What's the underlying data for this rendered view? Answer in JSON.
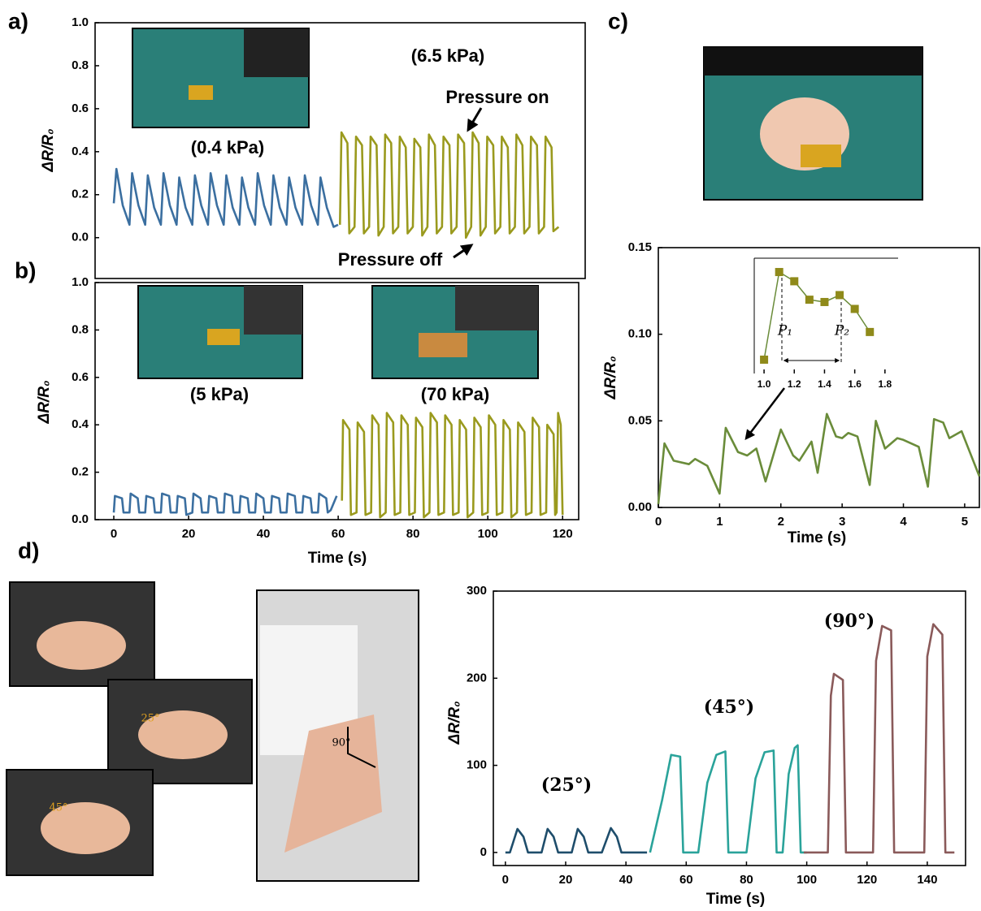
{
  "chart_data": [
    {
      "type": "line",
      "panel_label": "a)",
      "ylabel": "ΔR/R₀",
      "xlim": [
        -5,
        126.1
      ],
      "ylim": [
        -0.19,
        1.0
      ],
      "yticks": [
        {
          "value": 0,
          "label": "0.0"
        },
        0.2,
        0.4,
        0.6,
        0.8,
        {
          "value": 1,
          "label": "1.0"
        }
      ],
      "annotations": [
        "(0.4 kPa)",
        "(6.5 kPa)",
        "Pressure on",
        "Pressure off"
      ],
      "series": [
        {
          "color": "#3b6fa0",
          "x": [
            0,
            0.7,
            2.4,
            4.2,
            4.9,
            6.6,
            8.4,
            9.1,
            10.8,
            12.6,
            13.3,
            15,
            16.8,
            17.5,
            19.2,
            21,
            21.7,
            23.4,
            25.2,
            25.9,
            27.6,
            29.4,
            30.1,
            31.8,
            33.6,
            34.3,
            36,
            37.8,
            38.5,
            40.2,
            42,
            42.7,
            44.4,
            46.2,
            46.9,
            48.6,
            50.4,
            51.1,
            52.8,
            54.6,
            55.3,
            57,
            58.8,
            60
          ],
          "values": [
            0.16,
            0.32,
            0.15,
            0.06,
            0.3,
            0.15,
            0.06,
            0.29,
            0.14,
            0.06,
            0.3,
            0.15,
            0.06,
            0.28,
            0.14,
            0.06,
            0.29,
            0.15,
            0.06,
            0.3,
            0.15,
            0.06,
            0.29,
            0.14,
            0.06,
            0.28,
            0.14,
            0.06,
            0.3,
            0.15,
            0.06,
            0.29,
            0.14,
            0.06,
            0.28,
            0.14,
            0.06,
            0.29,
            0.15,
            0.06,
            0.28,
            0.14,
            0.05,
            0.06
          ]
        },
        {
          "color": "#9a9a1e",
          "x": [
            60.5,
            60.9,
            62.5,
            63,
            64.4,
            64.8,
            66.4,
            66.9,
            68.3,
            68.7,
            70.3,
            70.8,
            72.2,
            72.6,
            74.2,
            74.7,
            76.1,
            76.5,
            78.1,
            78.6,
            80,
            80.4,
            82,
            82.5,
            83.9,
            84.3,
            85.9,
            86.4,
            87.8,
            88.2,
            89.8,
            90.3,
            91.7,
            92.1,
            93.7,
            94.2,
            95.6,
            96,
            97.6,
            98.1,
            99.5,
            99.9,
            101.5,
            102,
            103.4,
            103.8,
            105.4,
            105.9,
            107.3,
            107.7,
            109.3,
            109.8,
            111.2,
            111.6,
            113.2,
            113.7,
            115.1,
            115.5,
            117.1,
            117.6,
            119
          ],
          "values": [
            0.06,
            0.49,
            0.44,
            0.02,
            0.05,
            0.47,
            0.43,
            0.02,
            0.05,
            0.47,
            0.43,
            0.01,
            0.05,
            0.48,
            0.44,
            0.02,
            0.05,
            0.47,
            0.42,
            0.02,
            0.05,
            0.46,
            0.42,
            0.01,
            0.05,
            0.48,
            0.43,
            0.02,
            0.05,
            0.47,
            0.43,
            0.02,
            0.05,
            0.48,
            0.44,
            0.0,
            0.05,
            0.49,
            0.44,
            0.01,
            0.05,
            0.47,
            0.43,
            0.02,
            0.05,
            0.47,
            0.42,
            0.02,
            0.05,
            0.48,
            0.43,
            0.02,
            0.05,
            0.47,
            0.43,
            0.02,
            0.05,
            0.47,
            0.42,
            0.03,
            0.05
          ]
        }
      ]
    },
    {
      "type": "line",
      "panel_label": "b)",
      "ylabel": "ΔR/R₀",
      "xlabel": "Time (s)",
      "xlim": [
        -5,
        124.3
      ],
      "ylim": [
        0,
        1
      ],
      "xticks": [
        0,
        20,
        40,
        60,
        80,
        100,
        120
      ],
      "yticks": [
        {
          "value": 0,
          "label": "0.0"
        },
        0.2,
        0.4,
        0.6,
        0.8,
        {
          "value": 1,
          "label": "1.0"
        }
      ],
      "annotations": [
        "(5 kPa)",
        "(70 kPa)"
      ],
      "series": [
        {
          "color": "#3b6fa0",
          "x": [
            0,
            0.3,
            2.2,
            2.6,
            4.2,
            4.5,
            6.4,
            6.8,
            8.4,
            8.7,
            10.6,
            11,
            12.6,
            12.9,
            14.8,
            15.2,
            16.8,
            17.1,
            19,
            19.4,
            21,
            21.3,
            23.2,
            23.6,
            25.2,
            25.5,
            27.4,
            27.8,
            29.4,
            29.7,
            31.6,
            32,
            33.6,
            33.9,
            35.8,
            36.2,
            37.8,
            38.1,
            40,
            40.4,
            42,
            42.3,
            44.2,
            44.6,
            46.2,
            46.5,
            48.4,
            48.8,
            50.4,
            50.7,
            52.6,
            53,
            54.6,
            54.9,
            56.8,
            57.2,
            58,
            59.6
          ],
          "values": [
            0.03,
            0.1,
            0.09,
            0.03,
            0.03,
            0.11,
            0.09,
            0.03,
            0.03,
            0.1,
            0.09,
            0.03,
            0.03,
            0.11,
            0.1,
            0.03,
            0.03,
            0.1,
            0.09,
            0.02,
            0.03,
            0.11,
            0.09,
            0.03,
            0.03,
            0.1,
            0.09,
            0.03,
            0.03,
            0.11,
            0.1,
            0.03,
            0.03,
            0.1,
            0.09,
            0.03,
            0.03,
            0.11,
            0.09,
            0.03,
            0.03,
            0.1,
            0.09,
            0.03,
            0.03,
            0.11,
            0.1,
            0.03,
            0.03,
            0.1,
            0.09,
            0.03,
            0.03,
            0.11,
            0.09,
            0.03,
            0.04,
            0.1
          ]
        },
        {
          "color": "#9a9a1e",
          "x": [
            61,
            61.3,
            63,
            63.4,
            64.9,
            65.2,
            66.9,
            67.3,
            68.8,
            69.1,
            70.8,
            71.2,
            72.7,
            73,
            74.7,
            75.1,
            76.6,
            76.9,
            78.6,
            79,
            80.5,
            80.8,
            82.5,
            82.9,
            84.4,
            84.7,
            86.4,
            86.8,
            88.3,
            88.6,
            90.3,
            90.7,
            92.2,
            92.5,
            94.2,
            94.6,
            96.1,
            96.4,
            98.1,
            98.5,
            100,
            100.3,
            102,
            102.4,
            103.9,
            104.2,
            105.9,
            106.3,
            107.8,
            108.1,
            109.8,
            110.2,
            111.7,
            112,
            113.7,
            114.1,
            115.6,
            115.9,
            117.6,
            118,
            118.4,
            118.8,
            119.5,
            120
          ],
          "values": [
            0.08,
            0.42,
            0.38,
            0.02,
            0.03,
            0.41,
            0.37,
            0.02,
            0.03,
            0.44,
            0.4,
            0.01,
            0.03,
            0.45,
            0.41,
            0.02,
            0.03,
            0.44,
            0.4,
            0.02,
            0.03,
            0.43,
            0.39,
            0.01,
            0.03,
            0.45,
            0.41,
            0.02,
            0.03,
            0.44,
            0.4,
            0.02,
            0.03,
            0.42,
            0.38,
            0.01,
            0.03,
            0.43,
            0.39,
            0.02,
            0.03,
            0.44,
            0.4,
            0.02,
            0.03,
            0.42,
            0.38,
            0.01,
            0.03,
            0.41,
            0.37,
            0.02,
            0.03,
            0.43,
            0.39,
            0.02,
            0.03,
            0.4,
            0.36,
            0.02,
            0.03,
            0.45,
            0.4,
            0.02
          ]
        }
      ]
    },
    {
      "type": "line",
      "panel_label": "c)",
      "ylabel": "ΔR/R₀",
      "xlabel": "Time (s)",
      "xlim": [
        0,
        5.24
      ],
      "ylim": [
        0,
        0.15
      ],
      "xticks": [
        0,
        1,
        2,
        3,
        4,
        5
      ],
      "yticks": [
        {
          "value": 0,
          "label": "0.00"
        },
        0.05,
        {
          "value": 0.1,
          "label": "0.10"
        },
        0.15
      ],
      "series": [
        {
          "color": "#6a8c3a",
          "x": [
            0,
            0.1,
            0.25,
            0.5,
            0.6,
            0.8,
            1,
            1.1,
            1.3,
            1.45,
            1.6,
            1.75,
            2,
            2.2,
            2.3,
            2.5,
            2.6,
            2.75,
            2.9,
            3,
            3.1,
            3.25,
            3.45,
            3.55,
            3.7,
            3.9,
            4,
            4.25,
            4.4,
            4.5,
            4.65,
            4.75,
            4.95,
            5.05,
            5.24
          ],
          "values": [
            0.002,
            0.037,
            0.027,
            0.025,
            0.028,
            0.024,
            0.008,
            0.046,
            0.032,
            0.03,
            0.034,
            0.015,
            0.045,
            0.03,
            0.027,
            0.038,
            0.02,
            0.054,
            0.041,
            0.04,
            0.043,
            0.041,
            0.013,
            0.05,
            0.034,
            0.04,
            0.039,
            0.035,
            0.012,
            0.051,
            0.049,
            0.04,
            0.044,
            0.035,
            0.018
          ]
        }
      ]
    },
    {
      "type": "line",
      "markers": true,
      "xlim": [
        0.935,
        1.887
      ],
      "ylim": [
        0.025,
        0.05
      ],
      "xticks": [
        {
          "value": 1,
          "label": "1.0"
        },
        1.2,
        1.4,
        1.6,
        1.8
      ],
      "annotations": [
        "P₁",
        "P₂"
      ],
      "series": [
        {
          "color": "#6a8c3a",
          "marker_color": "#8f8a1a",
          "x": [
            1,
            1.1,
            1.2,
            1.3,
            1.4,
            1.5,
            1.6,
            1.7
          ],
          "values": [
            0.028,
            0.047,
            0.045,
            0.041,
            0.0405,
            0.042,
            0.039,
            0.034
          ]
        }
      ]
    },
    {
      "type": "line",
      "panel_label": "d)",
      "ylabel": "ΔR/R₀",
      "xlabel": "Time (s)",
      "xlim": [
        -4,
        152.7
      ],
      "ylim": [
        -15,
        300
      ],
      "xticks": [
        0,
        20,
        40,
        60,
        80,
        100,
        120,
        140
      ],
      "yticks": [
        0,
        100,
        200,
        300
      ],
      "annotations": [
        "(25°)",
        "(45°)",
        "(90°)"
      ],
      "photo_labels": [
        "25°",
        "45°",
        "90°"
      ],
      "series": [
        {
          "color": "#1e4d6b",
          "x": [
            0,
            1.5,
            4,
            6,
            7.5,
            12,
            14,
            16,
            17.5,
            22,
            24,
            26,
            27.5,
            32,
            35,
            37,
            38.5,
            47
          ],
          "values": [
            0,
            0,
            27,
            18,
            0,
            0,
            27,
            18,
            0,
            0,
            27,
            18,
            0,
            0,
            28,
            18,
            0,
            0
          ]
        },
        {
          "color": "#2aa39a",
          "x": [
            48,
            52,
            55,
            58,
            59,
            64,
            67,
            70,
            73,
            74,
            80,
            83,
            86,
            89,
            90,
            92,
            94,
            96,
            97,
            98,
            100
          ],
          "values": [
            0,
            60,
            112,
            110,
            0,
            0,
            80,
            112,
            116,
            0,
            0,
            85,
            115,
            117,
            0,
            0,
            90,
            120,
            123,
            0,
            0
          ]
        },
        {
          "color": "#8a5a5a",
          "x": [
            99,
            107,
            108,
            109,
            112,
            113,
            122,
            123,
            125,
            128,
            129,
            139,
            140,
            142,
            145,
            146,
            149
          ],
          "values": [
            0,
            0,
            180,
            205,
            198,
            0,
            0,
            220,
            260,
            255,
            0,
            0,
            225,
            262,
            250,
            0,
            0
          ]
        }
      ]
    }
  ]
}
